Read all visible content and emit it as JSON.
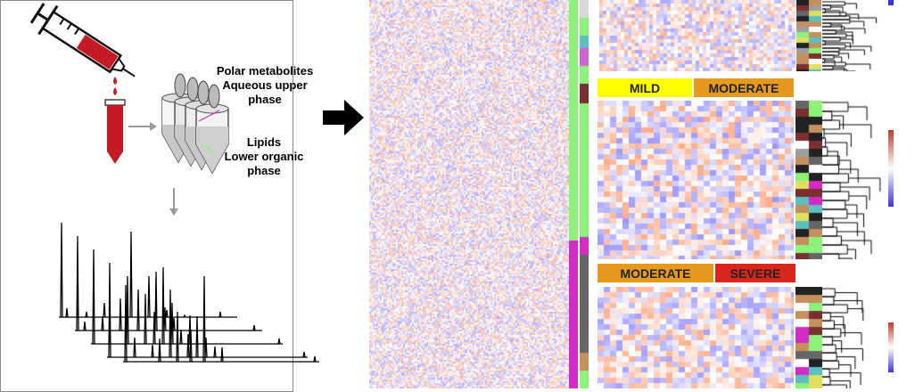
{
  "labels": {
    "polar_1": "Polar metabolites",
    "polar_2": "Aqueous upper",
    "polar_3": "phase",
    "lipids_1": "Lipids",
    "lipids_2": "Lower organic",
    "lipids_3": "phase"
  },
  "comparison_bars": {
    "top": [
      {
        "label": "MILD",
        "color": "#ffff00"
      },
      {
        "label": "MODERATE",
        "color": "#e59a1e"
      }
    ],
    "bottom": [
      {
        "label": "MODERATE",
        "color": "#e59a1e"
      },
      {
        "label": "SEVERE",
        "color": "#d9261c"
      }
    ]
  },
  "colors": {
    "high": "#d2774a",
    "low": "#7b6ee0",
    "blood": "#c41a26",
    "group_green": "#8cf27a",
    "group_magenta": "#d22cc4"
  },
  "icons": [
    "syringe-icon",
    "blood-tube-icon",
    "extraction-tubes-icon",
    "arrow-right-icon",
    "arrow-down-icon"
  ]
}
